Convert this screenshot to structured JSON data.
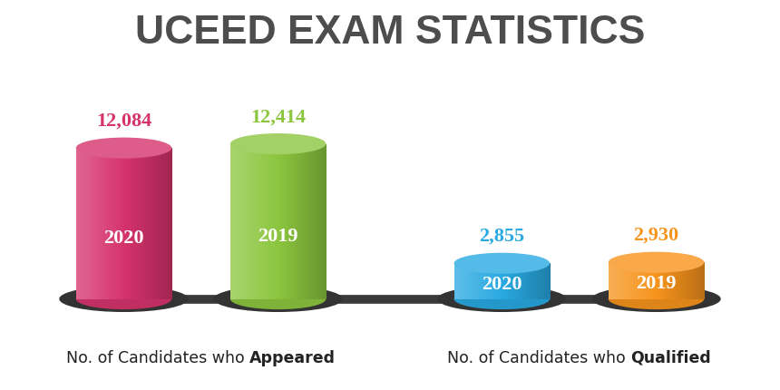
{
  "chart_data": {
    "type": "bar",
    "title": "UCEED EXAM STATISTICS",
    "categories": [
      "2020",
      "2019"
    ],
    "series": [
      {
        "name": "No. of Candidates who Appeared",
        "colors": [
          "#d6336c",
          "#8cc63f"
        ],
        "values": [
          12084,
          12414
        ],
        "value_labels": [
          "12,084",
          "12,414"
        ]
      },
      {
        "name": "No. of Candidates who Qualified",
        "colors": [
          "#29a9e1",
          "#f7941d"
        ],
        "values": [
          2855,
          2930
        ],
        "value_labels": [
          "2,855",
          "2,930"
        ]
      }
    ],
    "data_labels": true,
    "tick_labels": false
  }
}
